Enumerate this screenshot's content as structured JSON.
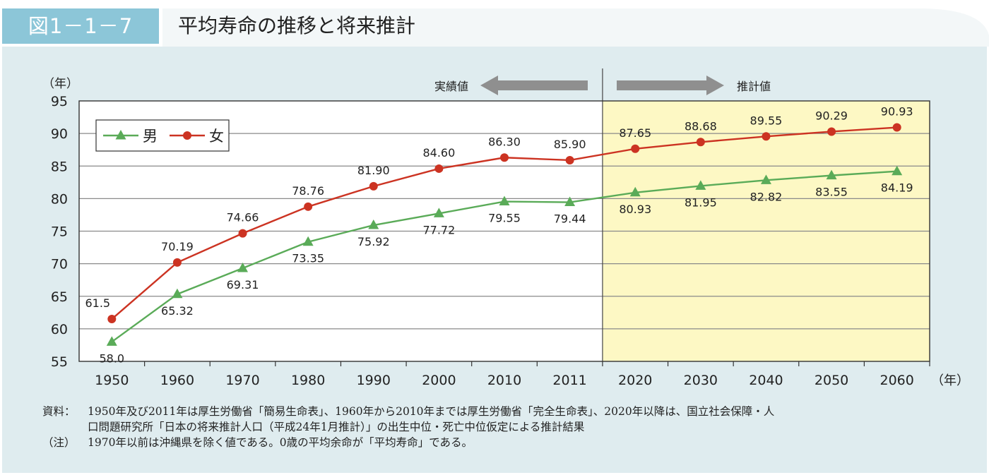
{
  "header": {
    "figure_label": "図1－1－7",
    "title": "平均寿命の推移と将来推計"
  },
  "colors": {
    "male": "#5aab58",
    "female": "#cc3322",
    "forecast_bg": "#fdf8c4",
    "panel_bg": "#dfecef",
    "badge": "#8cc6d8"
  },
  "chart_data": {
    "type": "line",
    "y_unit_label": "（年）",
    "x_unit_label": "（年）",
    "categories": [
      "1950",
      "1960",
      "1970",
      "1980",
      "1990",
      "2000",
      "2010",
      "2011",
      "2020",
      "2030",
      "2040",
      "2050",
      "2060"
    ],
    "ylim": [
      55,
      95
    ],
    "yticks": [
      55,
      60,
      65,
      70,
      75,
      80,
      85,
      90,
      95
    ],
    "grid": true,
    "legend_position": "top-left",
    "actual_label": "実績値",
    "forecast_label": "推計値",
    "series": [
      {
        "name": "男",
        "marker": "triangle",
        "values": [
          58.0,
          65.32,
          69.31,
          73.35,
          75.92,
          77.72,
          79.55,
          79.44,
          80.93,
          81.95,
          82.82,
          83.55,
          84.19
        ],
        "labels": [
          "58.0",
          "65.32",
          "69.31",
          "73.35",
          "75.92",
          "77.72",
          "79.55",
          "79.44",
          "80.93",
          "81.95",
          "82.82",
          "83.55",
          "84.19"
        ]
      },
      {
        "name": "女",
        "marker": "circle",
        "values": [
          61.5,
          70.19,
          74.66,
          78.76,
          81.9,
          84.6,
          86.3,
          85.9,
          87.65,
          88.68,
          89.55,
          90.29,
          90.93
        ],
        "labels": [
          "61.5",
          "70.19",
          "74.66",
          "78.76",
          "81.90",
          "84.60",
          "86.30",
          "85.90",
          "87.65",
          "88.68",
          "89.55",
          "90.29",
          "90.93"
        ]
      }
    ]
  },
  "notes": {
    "source_head": "資料：",
    "source_line1": "1950年及び2011年は厚生労働省「簡易生命表」、1960年から2010年までは厚生労働省「完全生命表」、2020年以降は、国立社会保障・人",
    "source_line2": "口問題研究所「日本の将来推計人口（平成24年1月推計）」の出生中位・死亡中位仮定による推計結果",
    "note_head": "（注）",
    "note_body": "1970年以前は沖縄県を除く値である。0歳の平均余命が「平均寿命」である。"
  }
}
